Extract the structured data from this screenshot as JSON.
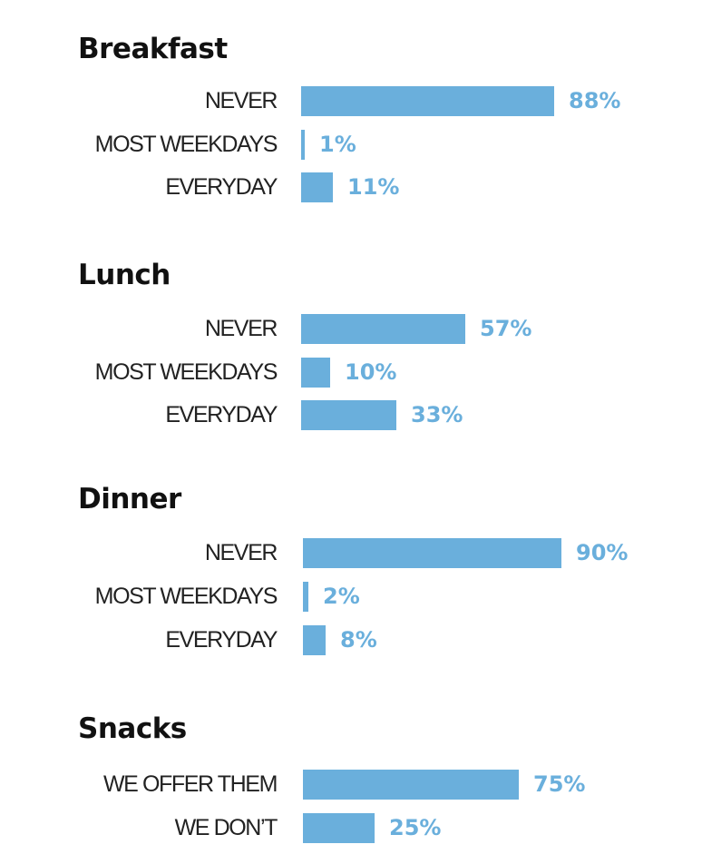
{
  "colors": {
    "bar": "#6aafdc",
    "value_text": "#6aafdc",
    "title": "#111111",
    "label": "#222222"
  },
  "chart_data": [
    {
      "type": "bar",
      "orientation": "horizontal",
      "title": "Breakfast",
      "categories": [
        "NEVER",
        "MOST WEEKDAYS",
        "EVERYDAY"
      ],
      "values": [
        88,
        1,
        11
      ],
      "value_labels": [
        "88%",
        "1%",
        "11%"
      ],
      "unit": "%",
      "xlim": [
        0,
        100
      ]
    },
    {
      "type": "bar",
      "orientation": "horizontal",
      "title": "Lunch",
      "categories": [
        "NEVER",
        "MOST WEEKDAYS",
        "EVERYDAY"
      ],
      "values": [
        57,
        10,
        33
      ],
      "value_labels": [
        "57%",
        "10%",
        "33%"
      ],
      "unit": "%",
      "xlim": [
        0,
        100
      ]
    },
    {
      "type": "bar",
      "orientation": "horizontal",
      "title": "Dinner",
      "categories": [
        "NEVER",
        "MOST WEEKDAYS",
        "EVERYDAY"
      ],
      "values": [
        90,
        2,
        8
      ],
      "value_labels": [
        "90%",
        "2%",
        "8%"
      ],
      "unit": "%",
      "xlim": [
        0,
        100
      ]
    },
    {
      "type": "bar",
      "orientation": "horizontal",
      "title": "Snacks",
      "categories": [
        "WE OFFER THEM",
        "WE DON’T"
      ],
      "values": [
        75,
        25
      ],
      "value_labels": [
        "75%",
        "25%"
      ],
      "unit": "%",
      "xlim": [
        0,
        100
      ]
    }
  ]
}
